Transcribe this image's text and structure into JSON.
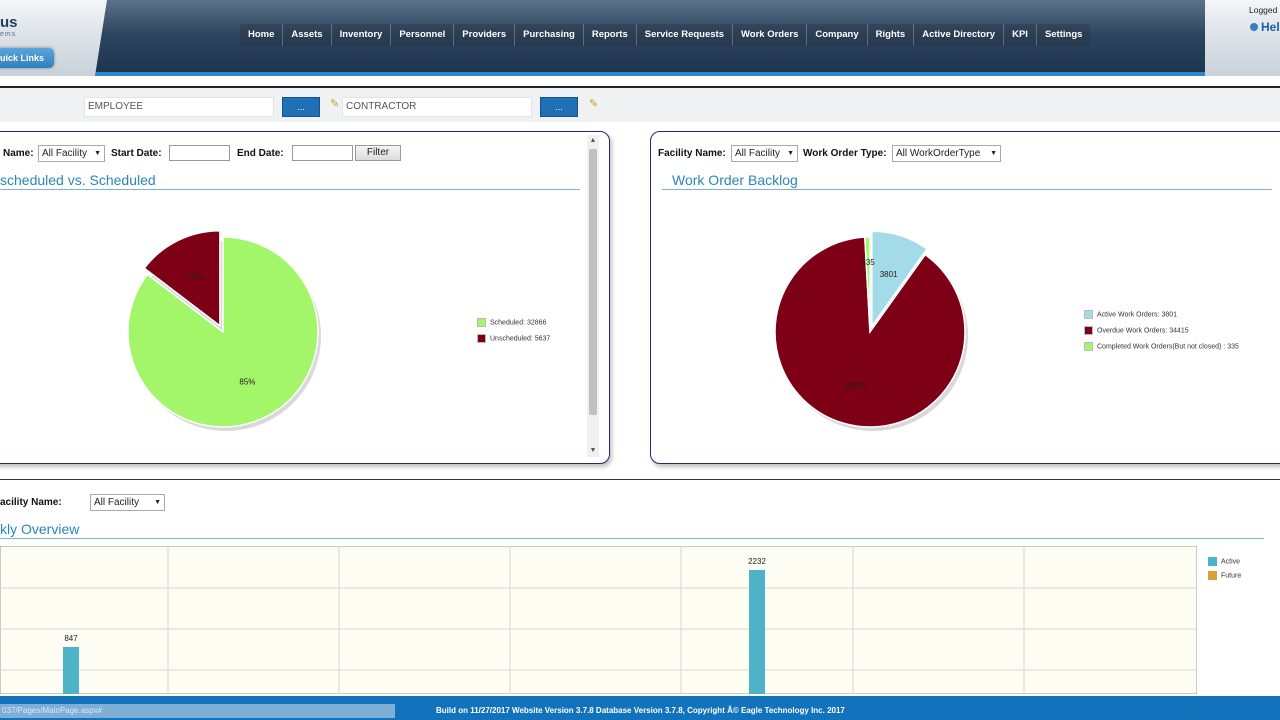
{
  "header": {
    "logo_text": "us",
    "logo_sub": "ems",
    "quick_links_label": "uick Links",
    "nav": [
      "Home",
      "Assets",
      "Inventory",
      "Personnel",
      "Providers",
      "Purchasing",
      "Reports",
      "Service Requests",
      "Work Orders",
      "Company",
      "Rights",
      "Active Directory",
      "KPI",
      "Settings"
    ],
    "logged_text": "Logged",
    "help_text": "Hel"
  },
  "filterbar": {
    "employee_placeholder": "EMPLOYEE",
    "contractor_placeholder": "CONTRACTOR",
    "button_label": "..."
  },
  "left_panel": {
    "facility_label": "Name:",
    "facility_value": "All Facility",
    "start_date_label": "Start Date:",
    "end_date_label": "End Date:",
    "filter_button": "Filter",
    "title": "scheduled vs. Scheduled",
    "legend": [
      "Scheduled: 32866",
      "Unscheduled: 5637"
    ],
    "slice_labels": [
      "85%",
      "15%"
    ]
  },
  "right_panel": {
    "facility_label": "Facility Name:",
    "facility_value": "All Facility",
    "type_label": "Work Order Type:",
    "type_value": "All WorkOrderType",
    "title": "Work Order Backlog",
    "legend": [
      "Active Work Orders: 3801",
      "Overdue Work Orders: 34415",
      "Completed Work Orders(But not closed) : 335"
    ],
    "slice_labels": [
      "3801",
      "34415",
      "335"
    ]
  },
  "bottom": {
    "facility_label": "acility Name:",
    "facility_value": "All Facility",
    "title": "kly Overview",
    "legend": [
      "Active",
      "Future"
    ]
  },
  "footer": {
    "status_url": "037/Pages/MainPage.aspx#",
    "text": "Build on 11/27/2017 Website Version 3.7.8 Database Version 3.7.8, Copyright Â© Eagle Technology Inc. 2017"
  },
  "colors": {
    "scheduled": "#a3f56a",
    "unscheduled": "#7d0016",
    "active_wo": "#a4dbe8",
    "overdue_wo": "#7d0016",
    "completed_wo": "#a3f56a",
    "bar_active": "#4db3c6",
    "bar_future": "#d9a13a",
    "title": "#2a86b8"
  },
  "chart_data": [
    {
      "type": "pie",
      "title": "scheduled vs. Scheduled",
      "categories": [
        "Scheduled",
        "Unscheduled"
      ],
      "values": [
        32866,
        5637
      ],
      "labels": [
        "85%",
        "15%"
      ],
      "legend_position": "right"
    },
    {
      "type": "pie",
      "title": "Work Order Backlog",
      "categories": [
        "Active Work Orders",
        "Overdue Work Orders",
        "Completed Work Orders(But not closed)"
      ],
      "values": [
        3801,
        34415,
        335
      ],
      "legend_position": "right"
    },
    {
      "type": "bar",
      "title": "kly Overview",
      "series": [
        {
          "name": "Active",
          "points": [
            {
              "index": 0.42,
              "value": 847
            },
            {
              "index": 4.44,
              "value": 2232
            }
          ]
        },
        {
          "name": "Future",
          "points": []
        }
      ],
      "data_labels": [
        "847",
        "2232"
      ],
      "legend_position": "right",
      "grid": true
    }
  ]
}
